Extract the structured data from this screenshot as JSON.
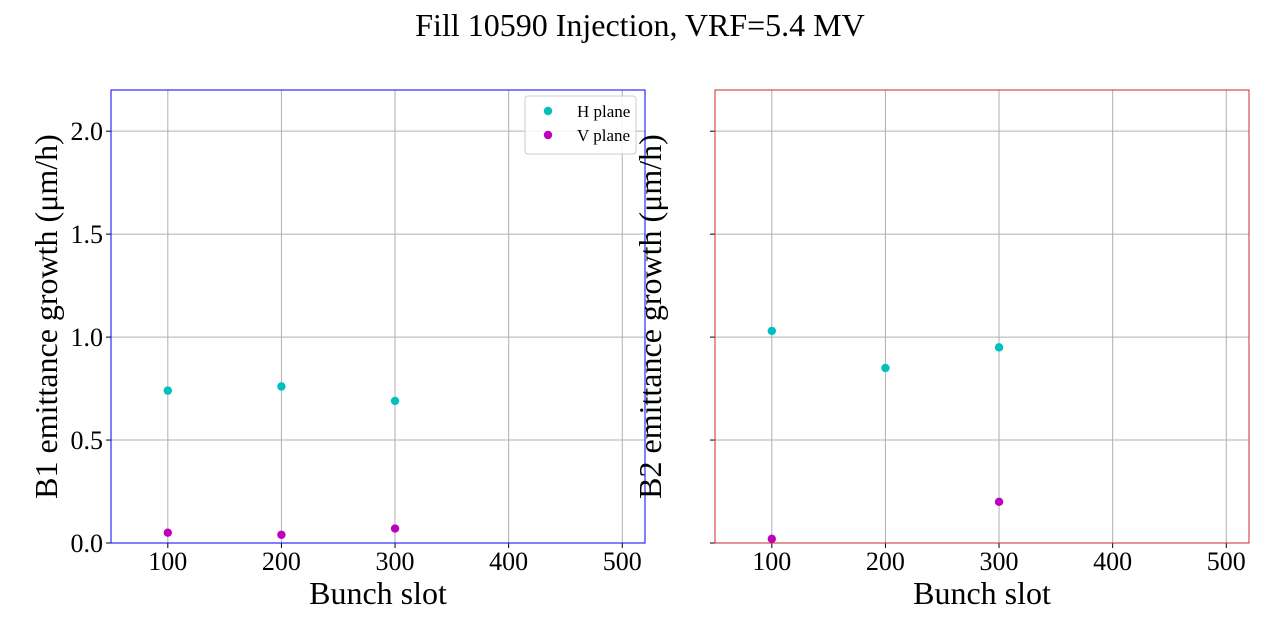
{
  "figure": {
    "title": "Fill 10590 Injection, VRF=5.4 MV"
  },
  "chart_data": [
    {
      "type": "scatter",
      "panel": "left",
      "frame_color": "#0000ff",
      "xlabel": "Bunch slot",
      "ylabel": "B1 emittance growth (μm/h)",
      "xlim": [
        50,
        520
      ],
      "ylim": [
        0.0,
        2.2
      ],
      "xticks": [
        100,
        200,
        300,
        400,
        500
      ],
      "yticks": [
        0.0,
        0.5,
        1.0,
        1.5,
        2.0
      ],
      "xtick_labels": [
        "100",
        "200",
        "300",
        "400",
        "500"
      ],
      "ytick_labels": [
        "0.0",
        "0.5",
        "1.0",
        "1.5",
        "2.0"
      ],
      "grid": true,
      "legend": {
        "position": "top-right",
        "show": true
      },
      "series": [
        {
          "name": "H plane",
          "color": "#00bfbf",
          "x": [
            100,
            200,
            300
          ],
          "y": [
            0.74,
            0.76,
            0.69
          ]
        },
        {
          "name": "V plane",
          "color": "#bf00bf",
          "x": [
            100,
            200,
            300
          ],
          "y": [
            0.05,
            0.04,
            0.07
          ]
        }
      ]
    },
    {
      "type": "scatter",
      "panel": "right",
      "frame_color": "#d62728",
      "xlabel": "Bunch slot",
      "ylabel": "B2 emittance growth (μm/h)",
      "xlim": [
        50,
        520
      ],
      "ylim": [
        0.0,
        2.2
      ],
      "xticks": [
        100,
        200,
        300,
        400,
        500
      ],
      "yticks": [
        0.0,
        0.5,
        1.0,
        1.5,
        2.0
      ],
      "xtick_labels": [
        "100",
        "200",
        "300",
        "400",
        "500"
      ],
      "ytick_labels": [],
      "grid": true,
      "legend": {
        "show": false
      },
      "series": [
        {
          "name": "H plane",
          "color": "#00bfbf",
          "x": [
            100,
            200,
            300
          ],
          "y": [
            1.03,
            0.85,
            0.95
          ]
        },
        {
          "name": "V plane",
          "color": "#bf00bf",
          "x": [
            100,
            300
          ],
          "y": [
            0.02,
            0.2
          ]
        }
      ]
    }
  ]
}
